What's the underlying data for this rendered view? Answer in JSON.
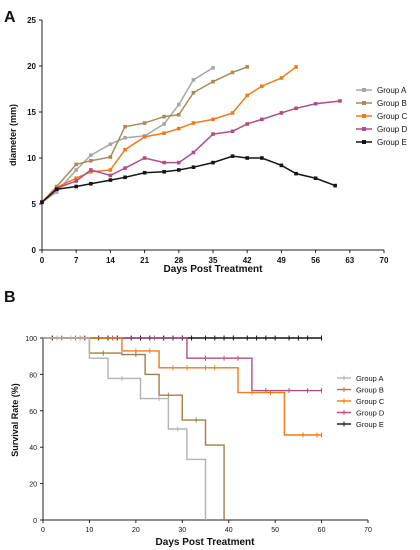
{
  "chart_data": [
    {
      "type": "line",
      "panel_label": "A",
      "xlabel": "Days Post Treatment",
      "ylabel": "diameter (mm)",
      "xlim": [
        0,
        70
      ],
      "ylim": [
        0,
        25
      ],
      "xticks": [
        0,
        7,
        14,
        21,
        28,
        35,
        42,
        49,
        56,
        63,
        70
      ],
      "yticks": [
        0,
        5,
        10,
        15,
        20,
        25
      ],
      "grid": false,
      "legend_position": "right",
      "series": [
        {
          "name": "Group A",
          "color": "#a6a6a6",
          "points": [
            [
              0,
              5.2
            ],
            [
              3,
              6.3
            ],
            [
              7,
              8.7
            ],
            [
              10,
              10.3
            ],
            [
              14,
              11.5
            ],
            [
              17,
              12.2
            ],
            [
              21,
              12.4
            ],
            [
              25,
              13.7
            ],
            [
              28,
              15.8
            ],
            [
              31,
              18.5
            ],
            [
              35,
              19.8
            ]
          ]
        },
        {
          "name": "Group B",
          "color": "#a98b57",
          "points": [
            [
              0,
              5.2
            ],
            [
              3,
              6.9
            ],
            [
              7,
              9.3
            ],
            [
              10,
              9.7
            ],
            [
              14,
              10.1
            ],
            [
              17,
              13.4
            ],
            [
              21,
              13.8
            ],
            [
              25,
              14.5
            ],
            [
              28,
              14.7
            ],
            [
              31,
              17.1
            ],
            [
              35,
              18.3
            ],
            [
              39,
              19.3
            ],
            [
              42,
              19.9
            ]
          ]
        },
        {
          "name": "Group C",
          "color": "#ef7a17",
          "points": [
            [
              0,
              5.2
            ],
            [
              3,
              6.8
            ],
            [
              7,
              7.8
            ],
            [
              10,
              8.5
            ],
            [
              14,
              8.7
            ],
            [
              17,
              10.9
            ],
            [
              21,
              12.3
            ],
            [
              25,
              12.7
            ],
            [
              28,
              13.2
            ],
            [
              31,
              13.8
            ],
            [
              35,
              14.2
            ],
            [
              39,
              14.9
            ],
            [
              42,
              16.8
            ],
            [
              45,
              17.8
            ],
            [
              49,
              18.7
            ],
            [
              52,
              19.9
            ]
          ]
        },
        {
          "name": "Group D",
          "color": "#b04d82",
          "points": [
            [
              0,
              5.2
            ],
            [
              3,
              6.7
            ],
            [
              7,
              7.5
            ],
            [
              10,
              8.7
            ],
            [
              14,
              8.1
            ],
            [
              17,
              8.9
            ],
            [
              21,
              10
            ],
            [
              25,
              9.5
            ],
            [
              28,
              9.5
            ],
            [
              31,
              10.6
            ],
            [
              35,
              12.6
            ],
            [
              39,
              12.9
            ],
            [
              42,
              13.7
            ],
            [
              45,
              14.2
            ],
            [
              49,
              14.9
            ],
            [
              52,
              15.4
            ],
            [
              56,
              15.9
            ],
            [
              61,
              16.2
            ]
          ]
        },
        {
          "name": "Group E",
          "color": "#151515",
          "points": [
            [
              0,
              5.2
            ],
            [
              3,
              6.6
            ],
            [
              7,
              6.9
            ],
            [
              10,
              7.2
            ],
            [
              14,
              7.6
            ],
            [
              17,
              7.9
            ],
            [
              21,
              8.4
            ],
            [
              25,
              8.5
            ],
            [
              28,
              8.7
            ],
            [
              31,
              9
            ],
            [
              35,
              9.5
            ],
            [
              39,
              10.2
            ],
            [
              42,
              10
            ],
            [
              45,
              10
            ],
            [
              49,
              9.2
            ],
            [
              52,
              8.3
            ],
            [
              56,
              7.8
            ],
            [
              60,
              7
            ]
          ]
        }
      ]
    },
    {
      "type": "line",
      "subtype": "survival-step",
      "panel_label": "B",
      "xlabel": "Days Post Treatment",
      "ylabel": "Survival Rate (%)",
      "xlim": [
        0,
        70
      ],
      "ylim": [
        0,
        100
      ],
      "xticks": [
        0,
        10,
        20,
        30,
        40,
        50,
        60,
        70
      ],
      "yticks": [
        0,
        20,
        40,
        60,
        80,
        100
      ],
      "grid": false,
      "legend_position": "right",
      "series": [
        {
          "name": "Group A",
          "color": "#b3b3b3",
          "steps": [
            [
              0,
              100
            ],
            [
              10,
              88.9
            ],
            [
              14,
              77.8
            ],
            [
              21,
              66.7
            ],
            [
              27,
              50
            ],
            [
              31,
              33.3
            ],
            [
              35,
              0
            ]
          ],
          "censor_x": [
            3,
            6,
            17,
            25,
            29
          ]
        },
        {
          "name": "Group B",
          "color": "#a07e4b",
          "steps": [
            [
              0,
              100
            ],
            [
              10,
              91.7
            ],
            [
              17,
              90.9
            ],
            [
              22,
              80
            ],
            [
              25,
              68.6
            ],
            [
              30,
              54.9
            ],
            [
              35,
              41.2
            ],
            [
              39,
              0
            ]
          ],
          "censor_x": [
            4,
            7,
            13,
            20,
            27,
            33
          ]
        },
        {
          "name": "Group C",
          "color": "#ef7a17",
          "steps": [
            [
              0,
              100
            ],
            [
              17,
              92.9
            ],
            [
              25,
              83.6
            ],
            [
              42,
              70
            ],
            [
              52,
              46.7
            ]
          ],
          "censor_x": [
            4,
            8,
            20,
            23,
            28,
            31,
            35,
            37,
            45,
            49,
            56,
            59,
            60
          ]
        },
        {
          "name": "Group D",
          "color": "#b04d82",
          "steps": [
            [
              0,
              100
            ],
            [
              31,
              88.9
            ],
            [
              45,
              71.1
            ]
          ],
          "censor_x": [
            4,
            9,
            15,
            24,
            35,
            39,
            42,
            48,
            53,
            57,
            60
          ]
        },
        {
          "name": "Group E",
          "color": "#151515",
          "steps": [
            [
              0,
              100
            ]
          ],
          "censor_x": [
            2,
            4,
            7,
            9,
            12,
            14,
            16,
            19,
            21,
            23,
            26,
            28,
            30,
            32,
            35,
            37,
            39,
            41,
            44,
            46,
            48,
            50,
            53,
            55,
            57,
            60
          ]
        }
      ]
    }
  ]
}
